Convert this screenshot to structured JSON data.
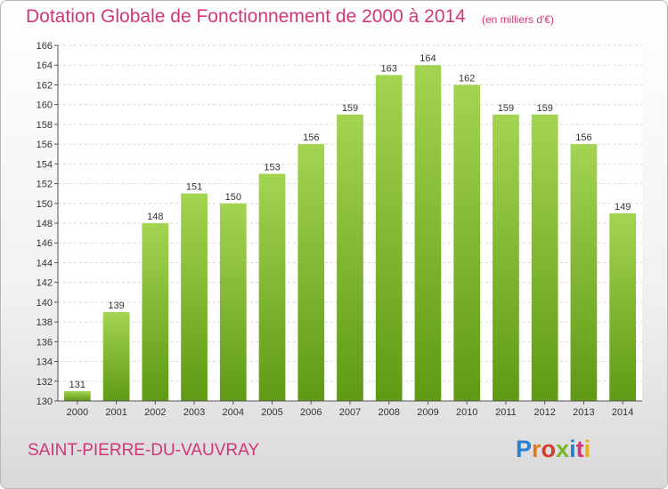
{
  "page": {
    "title": "Dotation Globale de Fonctionnement de 2000 à 2014",
    "subtitle": "(en milliers d'€)",
    "commune": "SAINT-PIERRE-DU-VAUVRAY",
    "logo": {
      "text": "Proxiti",
      "colors": [
        "#2a7fd4",
        "#e07a1f",
        "#d23c2a",
        "#79b42b",
        "#2a7fd4",
        "#d2357a",
        "#e0b020"
      ]
    }
  },
  "colors": {
    "accent": "#d2357a",
    "bar_top": "#a3d452",
    "bar_bottom": "#5f9a14"
  },
  "chart_data": {
    "type": "bar",
    "title": "Dotation Globale de Fonctionnement de 2000 à 2014",
    "subtitle": "(en milliers d'€)",
    "categories": [
      "2000",
      "2001",
      "2002",
      "2003",
      "2004",
      "2005",
      "2006",
      "2007",
      "2008",
      "2009",
      "2010",
      "2011",
      "2012",
      "2013",
      "2014"
    ],
    "values": [
      131,
      139,
      148,
      151,
      150,
      153,
      156,
      159,
      163,
      164,
      162,
      159,
      159,
      156,
      149
    ],
    "yticks": [
      130,
      132,
      134,
      136,
      138,
      140,
      142,
      144,
      146,
      148,
      150,
      152,
      154,
      156,
      158,
      160,
      162,
      164,
      166
    ],
    "ylim": [
      130,
      166
    ],
    "grid": true,
    "data_labels": true
  }
}
